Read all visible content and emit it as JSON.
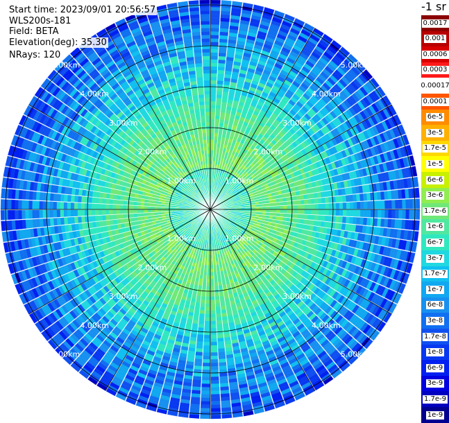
{
  "info": {
    "start_time": "Start time: 2023/09/01 20:56:57",
    "station": "WLS200s-181",
    "field": "Field: BETA",
    "elevation": "Elevation(deg): 35.30",
    "nrays": "NRays: 120"
  },
  "colorbar": {
    "unit": "-1 sr",
    "labels": [
      "0.0017",
      "0.001",
      "0.0006",
      "0.0003",
      "0.00017",
      "0.0001",
      "6e-5",
      "3e-5",
      "1.7e-5",
      "1e-5",
      "6e-6",
      "3e-6",
      "1.7e-6",
      "1e-6",
      "6e-7",
      "3e-7",
      "1.7e-7",
      "1e-7",
      "6e-8",
      "3e-8",
      "1.7e-8",
      "1e-8",
      "6e-9",
      "3e-9",
      "1.7e-9",
      "1e-9"
    ],
    "colors": [
      "#8b0000",
      "#b80000",
      "#d90000",
      "#ff1a1a",
      "#ffffff",
      "#ff5500",
      "#ff8c00",
      "#ffb000",
      "#ffd700",
      "#ffff00",
      "#c8f000",
      "#90ee50",
      "#70e878",
      "#50e8a0",
      "#30e8c0",
      "#20d8e0",
      "#10c0f0",
      "#10a8f0",
      "#1890f0",
      "#1070f0",
      "#1050f0",
      "#0838f0",
      "#0020f0",
      "#0000e0",
      "#0000c0",
      "#000090"
    ]
  },
  "rings": {
    "labels": [
      "1.00km",
      "2.00km",
      "3.00km",
      "4.00km",
      "5.00km"
    ],
    "km": [
      1,
      2,
      3,
      4,
      5
    ]
  },
  "ppi_colors": [
    "#000090",
    "#0000c0",
    "#0020f0",
    "#0838f0",
    "#1050f0",
    "#1070f0",
    "#1890f0",
    "#10a8f0",
    "#10c0f0",
    "#20d8e0",
    "#30e8c0",
    "#50e8a0",
    "#70e878",
    "#90ee50"
  ]
}
